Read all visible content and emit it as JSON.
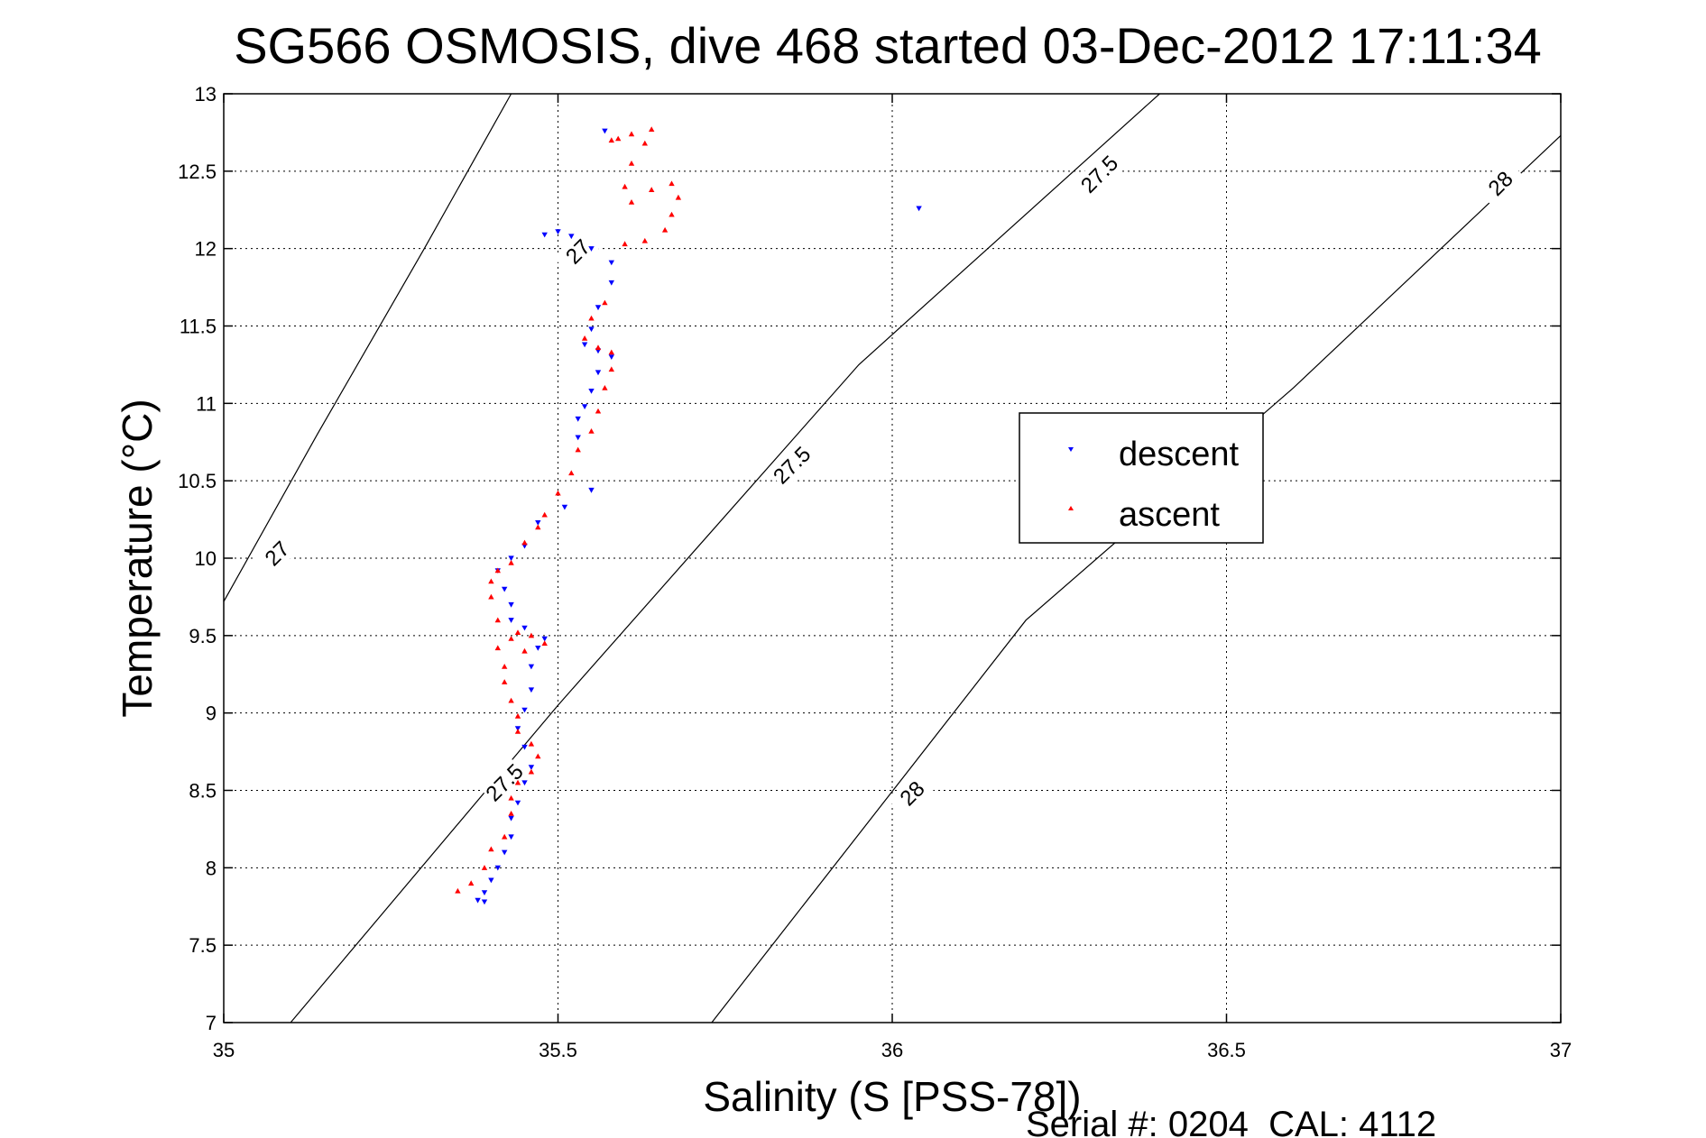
{
  "chart_data": {
    "type": "scatter",
    "title": "SG566 OSMOSIS, dive 468 started 03-Dec-2012 17:11:34",
    "xlabel": "Salinity (S [PSS-78])",
    "ylabel": "Temperature (°C)",
    "footer": "Serial #: 0204  CAL: 4112",
    "xlim": [
      35,
      37
    ],
    "ylim": [
      7,
      13
    ],
    "xticks": [
      "35",
      "35.5",
      "36",
      "36.5",
      "37"
    ],
    "yticks": [
      "7",
      "7.5",
      "8",
      "8.5",
      "9",
      "9.5",
      "10",
      "10.5",
      "11",
      "11.5",
      "12",
      "12.5",
      "13"
    ],
    "grid": true,
    "legend_position": "right-center",
    "density_contours": [
      {
        "value": 27,
        "points": [
          [
            35.0,
            9.72
          ],
          [
            35.14,
            10.8
          ],
          [
            35.3,
            12.0
          ],
          [
            35.43,
            13.0
          ]
        ],
        "labels": [
          {
            "text": "27",
            "x": 35.08,
            "y": 10.03
          },
          {
            "text": "27",
            "x": 35.53,
            "y": 11.98
          }
        ]
      },
      {
        "value": 27.5,
        "points": [
          [
            35.1,
            7.0
          ],
          [
            35.5,
            9.05
          ],
          [
            35.95,
            11.25
          ],
          [
            36.4,
            13.0
          ]
        ],
        "labels": [
          {
            "text": "27.5",
            "x": 35.42,
            "y": 8.55
          },
          {
            "text": "27.5",
            "x": 35.85,
            "y": 10.6
          },
          {
            "text": "27.5",
            "x": 36.31,
            "y": 12.48
          }
        ]
      },
      {
        "value": 28,
        "points": [
          [
            35.73,
            7.0
          ],
          [
            36.2,
            9.6
          ],
          [
            36.6,
            11.1
          ],
          [
            37.0,
            12.73
          ]
        ],
        "labels": [
          {
            "text": "28",
            "x": 36.03,
            "y": 8.48
          },
          {
            "text": "28",
            "x": 36.91,
            "y": 12.42
          }
        ]
      }
    ],
    "contour_color": "#000000",
    "series": [
      {
        "name": "descent",
        "color": "#0000ff",
        "marker": "triangle-down",
        "points": [
          [
            35.57,
            12.76
          ],
          [
            35.48,
            12.09
          ],
          [
            35.5,
            12.11
          ],
          [
            35.52,
            12.08
          ],
          [
            35.55,
            12.0
          ],
          [
            35.58,
            11.91
          ],
          [
            35.58,
            11.78
          ],
          [
            35.56,
            11.62
          ],
          [
            35.55,
            11.48
          ],
          [
            35.54,
            11.38
          ],
          [
            35.56,
            11.34
          ],
          [
            35.58,
            11.3
          ],
          [
            35.56,
            11.2
          ],
          [
            35.55,
            11.08
          ],
          [
            35.54,
            10.98
          ],
          [
            35.53,
            10.9
          ],
          [
            35.53,
            10.78
          ],
          [
            35.55,
            10.44
          ],
          [
            35.51,
            10.33
          ],
          [
            35.47,
            10.23
          ],
          [
            35.45,
            10.08
          ],
          [
            35.43,
            10.0
          ],
          [
            35.41,
            9.92
          ],
          [
            35.42,
            9.8
          ],
          [
            35.43,
            9.7
          ],
          [
            35.43,
            9.6
          ],
          [
            35.45,
            9.55
          ],
          [
            35.48,
            9.48
          ],
          [
            35.47,
            9.42
          ],
          [
            35.46,
            9.3
          ],
          [
            35.46,
            9.15
          ],
          [
            35.45,
            9.02
          ],
          [
            35.44,
            8.9
          ],
          [
            35.45,
            8.78
          ],
          [
            35.46,
            8.65
          ],
          [
            35.45,
            8.55
          ],
          [
            35.44,
            8.42
          ],
          [
            35.43,
            8.32
          ],
          [
            35.43,
            8.2
          ],
          [
            35.42,
            8.1
          ],
          [
            35.41,
            8.0
          ],
          [
            35.4,
            7.92
          ],
          [
            35.39,
            7.84
          ],
          [
            35.38,
            7.79
          ],
          [
            35.39,
            7.78
          ],
          [
            36.04,
            12.26
          ]
        ]
      },
      {
        "name": "ascent",
        "color": "#ff0000",
        "marker": "triangle-up",
        "points": [
          [
            35.35,
            7.85
          ],
          [
            35.37,
            7.9
          ],
          [
            35.39,
            8.0
          ],
          [
            35.4,
            8.12
          ],
          [
            35.42,
            8.2
          ],
          [
            35.43,
            8.35
          ],
          [
            35.43,
            8.45
          ],
          [
            35.44,
            8.55
          ],
          [
            35.46,
            8.62
          ],
          [
            35.47,
            8.72
          ],
          [
            35.46,
            8.8
          ],
          [
            35.44,
            8.88
          ],
          [
            35.44,
            8.98
          ],
          [
            35.43,
            9.08
          ],
          [
            35.42,
            9.2
          ],
          [
            35.42,
            9.3
          ],
          [
            35.41,
            9.42
          ],
          [
            35.43,
            9.48
          ],
          [
            35.44,
            9.52
          ],
          [
            35.46,
            9.5
          ],
          [
            35.48,
            9.45
          ],
          [
            35.45,
            9.4
          ],
          [
            35.41,
            9.6
          ],
          [
            35.4,
            9.75
          ],
          [
            35.4,
            9.85
          ],
          [
            35.41,
            9.92
          ],
          [
            35.43,
            9.97
          ],
          [
            35.45,
            10.1
          ],
          [
            35.47,
            10.2
          ],
          [
            35.48,
            10.28
          ],
          [
            35.5,
            10.42
          ],
          [
            35.52,
            10.55
          ],
          [
            35.53,
            10.7
          ],
          [
            35.55,
            10.82
          ],
          [
            35.56,
            10.95
          ],
          [
            35.57,
            11.1
          ],
          [
            35.58,
            11.22
          ],
          [
            35.58,
            11.33
          ],
          [
            35.56,
            11.36
          ],
          [
            35.54,
            11.42
          ],
          [
            35.55,
            11.55
          ],
          [
            35.57,
            11.65
          ],
          [
            35.6,
            12.03
          ],
          [
            35.63,
            12.05
          ],
          [
            35.66,
            12.12
          ],
          [
            35.67,
            12.22
          ],
          [
            35.68,
            12.33
          ],
          [
            35.67,
            12.42
          ],
          [
            35.64,
            12.38
          ],
          [
            35.61,
            12.3
          ],
          [
            35.6,
            12.4
          ],
          [
            35.61,
            12.55
          ],
          [
            35.63,
            12.68
          ],
          [
            35.64,
            12.77
          ],
          [
            35.61,
            12.74
          ],
          [
            35.59,
            12.71
          ],
          [
            35.58,
            12.7
          ]
        ]
      }
    ]
  }
}
